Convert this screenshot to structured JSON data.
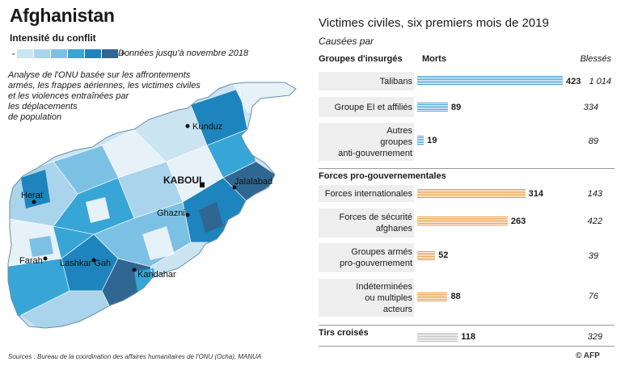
{
  "map": {
    "title": "Afghanistan",
    "legend": {
      "title": "Intensité du conflit",
      "minus": "-",
      "plus": "+",
      "note": "Données jusqu'à novembre 2018",
      "colors": [
        "#e6f1f8",
        "#cbe4f1",
        "#a9d4ec",
        "#7cc1e4",
        "#37a5d6",
        "#1d84bd",
        "#2f6792"
      ]
    },
    "analysis_lines": [
      "Analyse de l'ONU basée sur les affrontements",
      "armés, les frappes aériennes, les victimes civiles",
      "et les violences entraînées par",
      "les déplacements",
      "de population"
    ],
    "cities": [
      {
        "name": "Kunduz",
        "capital": false
      },
      {
        "name": "KABOUL",
        "capital": true
      },
      {
        "name": "Jalalabad",
        "capital": false
      },
      {
        "name": "Herat",
        "capital": false
      },
      {
        "name": "Ghazni",
        "capital": false
      },
      {
        "name": "Farah",
        "capital": false
      },
      {
        "name": "Lashkar Gah",
        "capital": false
      },
      {
        "name": "Kandahar",
        "capital": false
      }
    ]
  },
  "chart_data": {
    "type": "bar",
    "title": "Victimes civiles, six premiers mois de 2019",
    "subtitle": "Causées par",
    "col_deaths": "Morts",
    "col_injured": "Blessés",
    "groups": [
      {
        "name": "Groupes d'insurgés",
        "color": "#3a9ad4",
        "rows": [
          {
            "label_lines": [
              "Talibans"
            ],
            "deaths": 423,
            "injured": "1 014"
          },
          {
            "label_lines": [
              "Groupe EI et affiliés"
            ],
            "deaths": 89,
            "injured": "334"
          },
          {
            "label_lines": [
              "Autres",
              "groupes",
              "anti-gouvernement"
            ],
            "deaths": 19,
            "injured": "89"
          }
        ]
      },
      {
        "name": "Forces pro-gouvernementales",
        "color": "#e8963a",
        "rows": [
          {
            "label_lines": [
              "Forces internationales"
            ],
            "deaths": 314,
            "injured": "143"
          },
          {
            "label_lines": [
              "Forces de sécurité",
              "afghanes"
            ],
            "deaths": 263,
            "injured": "422"
          },
          {
            "label_lines": [
              "Groupes armés",
              "pro-gouvernement"
            ],
            "deaths": 52,
            "injured": "39"
          },
          {
            "label_lines": [
              "Indéterminées",
              "ou multiples",
              "acteurs"
            ],
            "deaths": 88,
            "injured": "76"
          }
        ]
      },
      {
        "name": "Tirs croisés",
        "color": "#bdbdbd",
        "rows": [
          {
            "label_lines": [],
            "deaths": 118,
            "injured": "329"
          }
        ]
      }
    ]
  },
  "footer": {
    "sources": "Sources : Bureau de la coordination des affaires humanitaires de l'ONU (Ocha), MANUA",
    "credit": "© AFP"
  }
}
